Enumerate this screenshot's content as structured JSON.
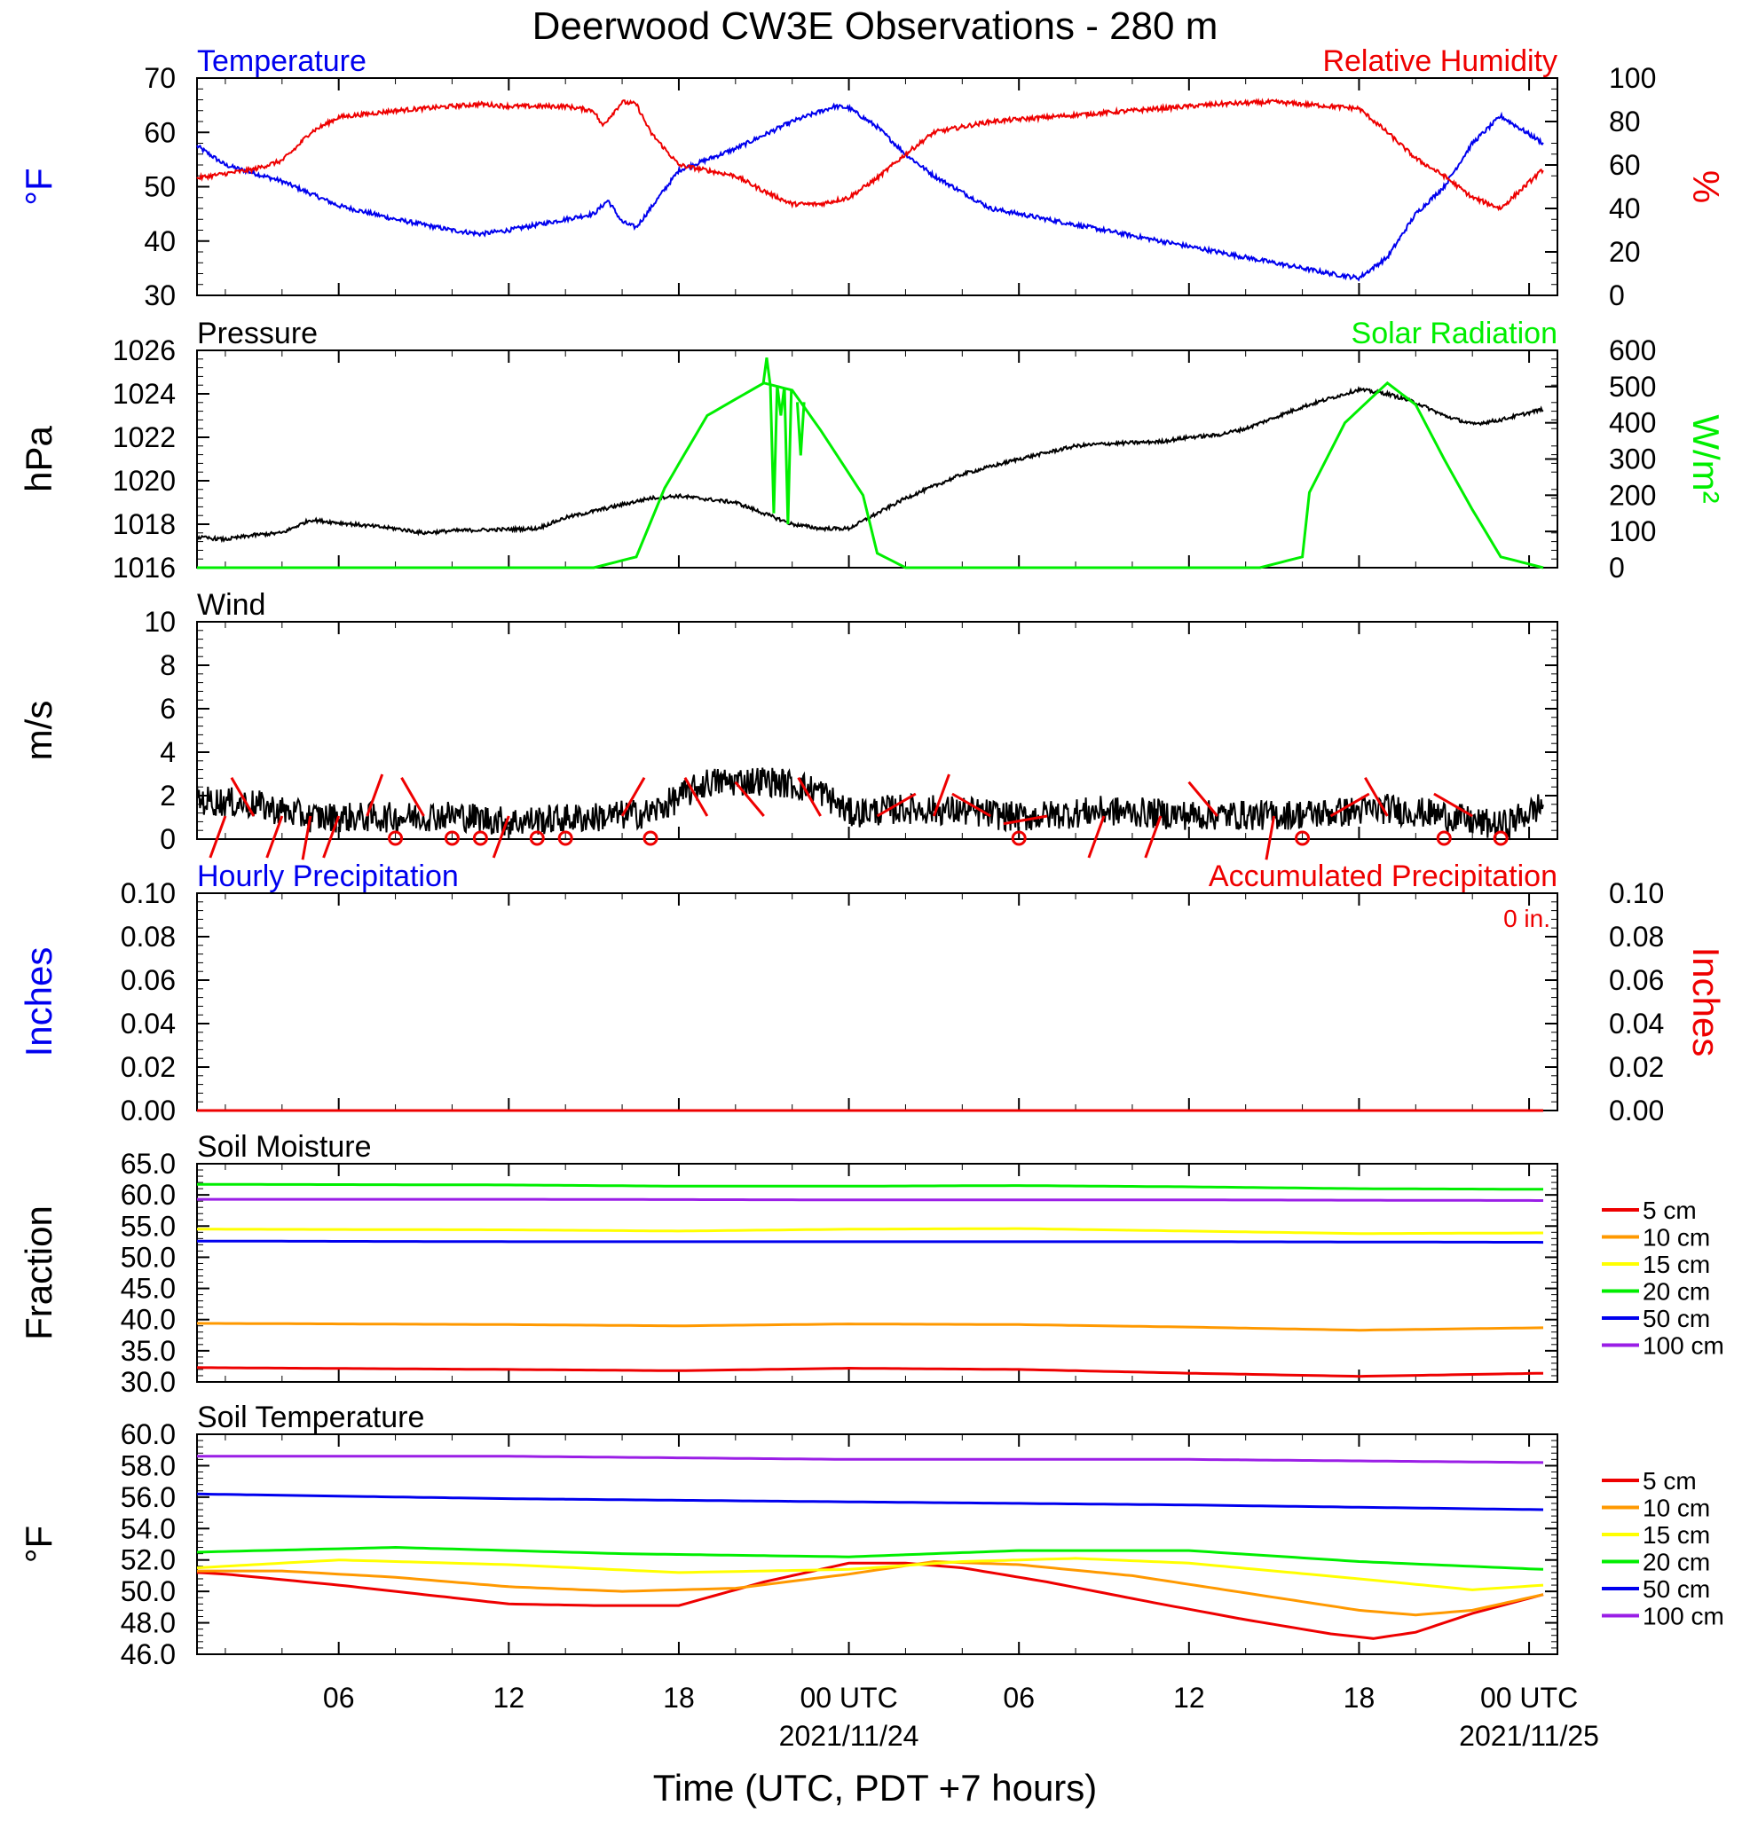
{
  "title": "Deerwood CW3E Observations - 280 m",
  "colors": {
    "blue": "#0000ee",
    "red": "#ee0000",
    "green": "#00ee00",
    "black": "#000000",
    "orange": "#ff9900",
    "yellow": "#ffff00",
    "purple": "#9a1ee6"
  },
  "xaxis": {
    "tick_labels": [
      "06",
      "12",
      "18",
      "00 UTC",
      "06",
      "12",
      "18",
      "00 UTC"
    ],
    "tick_hours": [
      6,
      12,
      18,
      24,
      30,
      36,
      42,
      48
    ],
    "date_labels": [
      "2021/11/24",
      "2021/11/25"
    ],
    "date_hours": [
      24,
      48
    ],
    "xlabel": "Time (UTC, PDT +7 hours)",
    "xlim_hours": [
      1,
      49
    ]
  },
  "chart_data": [
    {
      "type": "line",
      "name": "temp-rh",
      "left_label": "Temperature",
      "right_label": "Relative Humidity",
      "ylabel_left": "°F",
      "ylabel_right": "%",
      "ylim_left": [
        30,
        70
      ],
      "ylim_right": [
        0,
        100
      ],
      "ticks_left": [
        "30",
        "40",
        "50",
        "60",
        "70"
      ],
      "ticks_right": [
        "0",
        "20",
        "40",
        "60",
        "80",
        "100"
      ],
      "series": [
        {
          "axis": "left",
          "color": "blue",
          "noise": 0.4,
          "x": [
            1,
            2,
            4,
            6,
            8,
            10,
            11,
            12,
            14,
            15,
            15.5,
            16,
            16.5,
            17,
            18,
            20,
            22,
            23.5,
            24,
            25,
            26,
            27,
            29,
            31,
            33,
            35,
            37,
            39,
            40,
            41,
            42,
            43,
            44,
            45,
            46,
            47,
            48.5
          ],
          "y": [
            57.5,
            54,
            51,
            46.5,
            44,
            42,
            41.3,
            42,
            44,
            45,
            47.5,
            43.5,
            42.5,
            46,
            53,
            57,
            62,
            64.8,
            64.5,
            61,
            56,
            52,
            46,
            44,
            42,
            40,
            38,
            36,
            35,
            34,
            33.2,
            37,
            45,
            50,
            58,
            63,
            58
          ]
        },
        {
          "axis": "right",
          "color": "red",
          "noise": 1.0,
          "x": [
            1,
            2,
            3,
            4,
            4.5,
            5,
            6,
            8,
            10,
            11,
            12,
            14,
            15,
            15.3,
            16,
            16.5,
            17,
            18,
            20,
            21,
            22,
            23,
            24,
            25,
            26,
            27,
            29,
            31,
            33,
            35,
            37,
            39,
            40,
            41,
            42,
            43,
            44,
            45,
            46,
            47,
            48.5
          ],
          "y": [
            54,
            56,
            58,
            62,
            68,
            75,
            82,
            85,
            87,
            88,
            87,
            87,
            85,
            78,
            89,
            88,
            75,
            60,
            55,
            48,
            42,
            42,
            45,
            54,
            65,
            75,
            80,
            82,
            84,
            86,
            88,
            89,
            88,
            87,
            86,
            75,
            63,
            55,
            45,
            40,
            58
          ]
        }
      ]
    },
    {
      "type": "line",
      "name": "pressure-solar",
      "left_label": "Pressure",
      "right_label": "Solar Radiation",
      "ylabel_left": "hPa",
      "ylabel_right": "W/m²",
      "ylim_left": [
        1016,
        1026
      ],
      "ylim_right": [
        0,
        600
      ],
      "ticks_left": [
        "1016",
        "1018",
        "1020",
        "1022",
        "1024",
        "1026"
      ],
      "ticks_right": [
        "0",
        "100",
        "200",
        "300",
        "400",
        "500",
        "600"
      ],
      "series": [
        {
          "axis": "left",
          "color": "black",
          "noise": 0.08,
          "x": [
            1,
            2,
            3,
            4,
            5,
            8,
            9,
            10,
            13,
            14,
            15,
            17,
            18,
            20,
            21,
            22,
            23,
            24,
            26,
            28,
            30,
            31,
            32,
            33,
            35,
            36,
            37,
            38,
            40,
            41,
            42,
            43,
            44,
            45,
            46,
            47,
            48.5
          ],
          "y": [
            1017.4,
            1017.3,
            1017.5,
            1017.6,
            1018.2,
            1017.8,
            1017.6,
            1017.7,
            1017.8,
            1018.3,
            1018.6,
            1019.2,
            1019.3,
            1019.0,
            1018.5,
            1018.0,
            1017.8,
            1017.8,
            1019.2,
            1020.3,
            1021.0,
            1021.3,
            1021.6,
            1021.7,
            1021.8,
            1022.0,
            1022.1,
            1022.4,
            1023.4,
            1023.8,
            1024.2,
            1024.0,
            1023.6,
            1023.0,
            1022.6,
            1022.8,
            1023.3
          ]
        },
        {
          "axis": "right",
          "color": "green",
          "noise": 0,
          "x": [
            1,
            15,
            16.5,
            17.5,
            19,
            21,
            22,
            23,
            24.5,
            25,
            26,
            38.5,
            40,
            40.2,
            41.5,
            43,
            44,
            45,
            46,
            47,
            48.5
          ],
          "y": [
            0,
            0,
            30,
            220,
            420,
            510,
            490,
            380,
            200,
            40,
            0,
            0,
            30,
            200,
            400,
            510,
            450,
            300,
            160,
            30,
            0
          ]
        }
      ],
      "solar_spikes": {
        "x": [
          21.1,
          21.35,
          21.6,
          21.85,
          22.3
        ],
        "y": [
          580,
          150,
          420,
          120,
          310
        ]
      }
    },
    {
      "type": "line",
      "name": "wind",
      "left_label": "Wind",
      "ylabel_left": "m/s",
      "ylim_left": [
        0,
        10
      ],
      "ticks_left": [
        "0",
        "2",
        "4",
        "6",
        "8",
        "10"
      ],
      "series": [
        {
          "axis": "left",
          "color": "black",
          "noise": 0.7,
          "x": [
            1,
            3,
            5,
            8,
            10,
            12,
            15,
            17,
            19,
            21,
            22,
            23,
            24,
            26,
            28,
            30,
            33,
            36,
            39,
            41,
            43,
            45,
            46,
            47,
            48,
            48.5
          ],
          "y": [
            1.8,
            1.6,
            1.0,
            1.0,
            1.1,
            0.8,
            1.0,
            1.2,
            2.6,
            2.7,
            2.5,
            2.2,
            1.2,
            1.4,
            1.3,
            1.0,
            1.3,
            1.1,
            1.1,
            1.2,
            1.4,
            1.1,
            0.8,
            0.6,
            1.2,
            1.6
          ]
        }
      ],
      "calm_hours": [
        8,
        10,
        11,
        13,
        14,
        17,
        30,
        40,
        45,
        47
      ],
      "barbs": {
        "x": [
          2,
          3,
          4,
          5,
          6,
          7,
          9,
          12,
          16,
          19,
          21,
          23,
          25,
          27,
          29,
          31,
          33,
          35,
          37,
          39,
          41,
          43,
          46
        ],
        "dir_deg": [
          200,
          330,
          200,
          190,
          200,
          20,
          330,
          200,
          30,
          330,
          320,
          330,
          60,
          20,
          300,
          260,
          200,
          200,
          320,
          190,
          60,
          330,
          300
        ]
      }
    },
    {
      "type": "line",
      "name": "precipitation",
      "left_label": "Hourly Precipitation",
      "right_label": "Accumulated Precipitation",
      "total_label": "0 in.",
      "ylabel_left": "Inches",
      "ylabel_right": "Inches",
      "ylim_left": [
        0,
        0.1
      ],
      "ticks_left": [
        "0.00",
        "0.02",
        "0.04",
        "0.06",
        "0.08",
        "0.10"
      ],
      "ticks_right": [
        "0.00",
        "0.02",
        "0.04",
        "0.06",
        "0.08",
        "0.10"
      ],
      "series": [
        {
          "axis": "left",
          "color": "red",
          "noise": 0,
          "x": [
            1,
            48.5
          ],
          "y": [
            0,
            0
          ]
        }
      ]
    },
    {
      "type": "line",
      "name": "soil-moisture",
      "left_label": "Soil Moisture",
      "ylabel_left": "Fraction",
      "ylim_left": [
        30,
        65
      ],
      "ticks_left": [
        "30.0",
        "35.0",
        "40.0",
        "45.0",
        "50.0",
        "55.0",
        "60.0",
        "65.0"
      ],
      "legend": [
        "5 cm",
        "10 cm",
        "15 cm",
        "20 cm",
        "50 cm",
        "100 cm"
      ],
      "series": [
        {
          "name": "5 cm",
          "color": "red",
          "noise": 0,
          "x": [
            1,
            12,
            18,
            24,
            30,
            36,
            42,
            48.5
          ],
          "y": [
            32.3,
            32.0,
            31.8,
            32.2,
            32.0,
            31.4,
            30.9,
            31.4
          ]
        },
        {
          "name": "10 cm",
          "color": "orange",
          "noise": 0,
          "x": [
            1,
            12,
            18,
            24,
            30,
            36,
            42,
            48.5
          ],
          "y": [
            39.4,
            39.2,
            39.0,
            39.3,
            39.2,
            38.8,
            38.3,
            38.7
          ]
        },
        {
          "name": "15 cm",
          "color": "yellow",
          "noise": 0,
          "x": [
            1,
            12,
            18,
            24,
            30,
            36,
            42,
            48.5
          ],
          "y": [
            54.5,
            54.4,
            54.2,
            54.5,
            54.6,
            54.2,
            53.8,
            53.9
          ]
        },
        {
          "name": "20 cm",
          "color": "green",
          "noise": 0,
          "x": [
            1,
            12,
            18,
            24,
            30,
            36,
            42,
            48.5
          ],
          "y": [
            61.7,
            61.6,
            61.4,
            61.4,
            61.5,
            61.3,
            61.0,
            60.9
          ]
        },
        {
          "name": "50 cm",
          "color": "blue",
          "noise": 0,
          "x": [
            1,
            12,
            24,
            36,
            48.5
          ],
          "y": [
            52.6,
            52.5,
            52.5,
            52.5,
            52.4
          ]
        },
        {
          "name": "100 cm",
          "color": "purple",
          "noise": 0,
          "x": [
            1,
            12,
            24,
            36,
            48.5
          ],
          "y": [
            59.3,
            59.3,
            59.2,
            59.2,
            59.1
          ]
        }
      ]
    },
    {
      "type": "line",
      "name": "soil-temperature",
      "left_label": "Soil Temperature",
      "ylabel_left": "°F",
      "ylim_left": [
        46,
        60
      ],
      "ticks_left": [
        "46.0",
        "48.0",
        "50.0",
        "52.0",
        "54.0",
        "56.0",
        "58.0",
        "60.0"
      ],
      "legend": [
        "5 cm",
        "10 cm",
        "15 cm",
        "20 cm",
        "50 cm",
        "100 cm"
      ],
      "series": [
        {
          "name": "5 cm",
          "color": "red",
          "noise": 0,
          "x": [
            1,
            2,
            6,
            9,
            12,
            15,
            18,
            21,
            24,
            26,
            28,
            31,
            35,
            38,
            41,
            42.5,
            44,
            46,
            48.5
          ],
          "y": [
            51.2,
            51.1,
            50.4,
            49.8,
            49.2,
            49.1,
            49.1,
            50.6,
            51.8,
            51.8,
            51.5,
            50.6,
            49.2,
            48.2,
            47.3,
            47.0,
            47.4,
            48.6,
            49.8
          ]
        },
        {
          "name": "10 cm",
          "color": "orange",
          "noise": 0,
          "x": [
            1,
            4,
            8,
            12,
            16,
            20,
            24,
            27,
            30,
            34,
            38,
            42,
            44,
            46,
            48.5
          ],
          "y": [
            51.3,
            51.3,
            50.9,
            50.3,
            50.0,
            50.2,
            51.1,
            51.9,
            51.7,
            51.0,
            49.9,
            48.8,
            48.5,
            48.8,
            49.8
          ]
        },
        {
          "name": "15 cm",
          "color": "yellow",
          "noise": 0,
          "x": [
            1,
            6,
            12,
            18,
            24,
            28,
            32,
            36,
            42,
            46,
            48.5
          ],
          "y": [
            51.5,
            52.0,
            51.7,
            51.2,
            51.4,
            51.9,
            52.1,
            51.8,
            50.8,
            50.1,
            50.4
          ]
        },
        {
          "name": "20 cm",
          "color": "green",
          "noise": 0,
          "x": [
            1,
            8,
            16,
            24,
            30,
            36,
            42,
            48.5
          ],
          "y": [
            52.5,
            52.8,
            52.4,
            52.2,
            52.6,
            52.6,
            51.9,
            51.4
          ]
        },
        {
          "name": "50 cm",
          "color": "blue",
          "noise": 0,
          "x": [
            1,
            12,
            24,
            36,
            48.5
          ],
          "y": [
            56.2,
            55.9,
            55.7,
            55.5,
            55.2
          ]
        },
        {
          "name": "100 cm",
          "color": "purple",
          "noise": 0,
          "x": [
            1,
            12,
            24,
            36,
            48.5
          ],
          "y": [
            58.6,
            58.6,
            58.4,
            58.4,
            58.2
          ]
        }
      ]
    }
  ]
}
